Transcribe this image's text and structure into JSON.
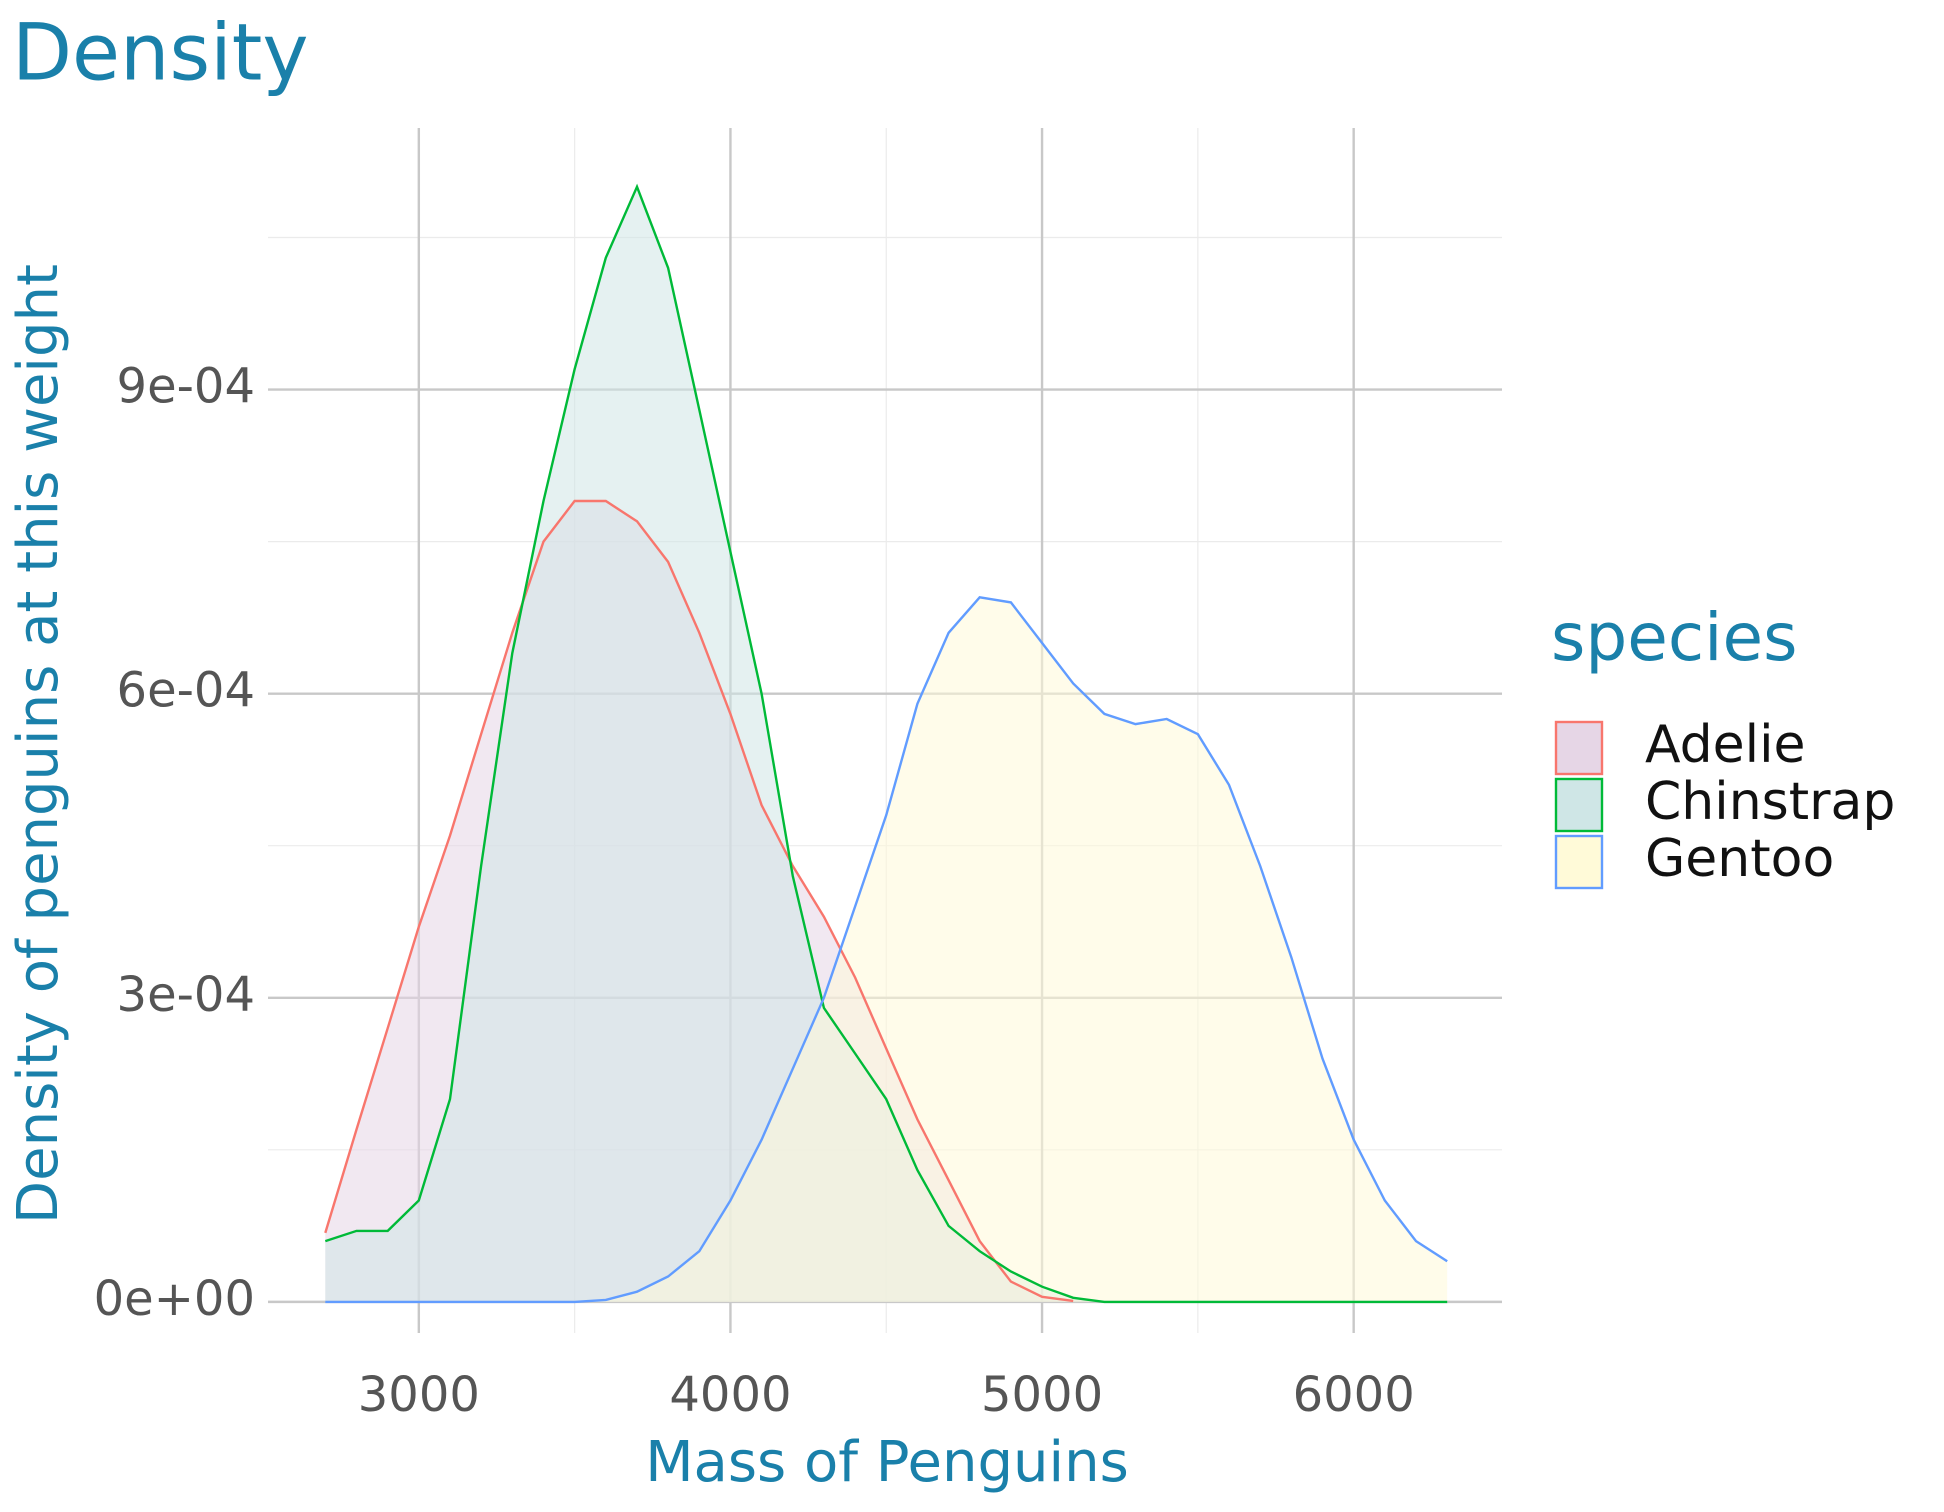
{
  "chart_data": {
    "type": "density",
    "title": "Density",
    "x_label": "Mass of Penguins",
    "y_label": "Density of penguins at this weight",
    "legend_title": "species",
    "legend_position": "right",
    "grid": true,
    "xlim": [
      2516,
      6476
    ],
    "ylim": [
      -3.07e-05,
      0.001158
    ],
    "xticks": [
      3000,
      4000,
      5000,
      6000
    ],
    "yticks": [
      {
        "value": 0,
        "label": "0e+00"
      },
      {
        "value": 0.0003,
        "label": "3e-04"
      },
      {
        "value": 0.0006,
        "label": "6e-04"
      },
      {
        "value": 0.0009,
        "label": "9e-04"
      }
    ],
    "x_minor_ticks": [
      3500,
      4500,
      5500
    ],
    "y_minor_ticks": [
      0.00015,
      0.00045,
      0.00075,
      0.00105
    ],
    "x": [
      2700,
      2800,
      2900,
      3000,
      3100,
      3200,
      3300,
      3400,
      3500,
      3600,
      3700,
      3800,
      3900,
      4000,
      4100,
      4200,
      4300,
      4400,
      4500,
      4600,
      4700,
      4800,
      4900,
      5000,
      5100,
      5200,
      5300,
      5400,
      5500,
      5600,
      5700,
      5800,
      5900,
      6000,
      6100,
      6200,
      6300
    ],
    "series": [
      {
        "name": "Adelie",
        "color": "#F8766D",
        "fill": "#e6d6e6",
        "values": [
          6.8e-05,
          0.00017,
          0.00027,
          0.00037,
          0.00046,
          0.00056,
          0.00066,
          0.00075,
          0.00079,
          0.00079,
          0.00077,
          0.00073,
          0.00066,
          0.00058,
          0.00049,
          0.00043,
          0.00038,
          0.00032,
          0.00025,
          0.00018,
          0.00012,
          6e-05,
          2e-05,
          5e-06,
          1e-06,
          null,
          null,
          null,
          null,
          null,
          null,
          null,
          null,
          null,
          null,
          null,
          null
        ]
      },
      {
        "name": "Chinstrap",
        "color": "#00BA38",
        "fill": "#cfe6e6",
        "values": [
          6e-05,
          7e-05,
          7e-05,
          0.0001,
          0.0002,
          0.00043,
          0.00064,
          0.00079,
          0.00092,
          0.00103,
          0.0011,
          0.00102,
          0.00088,
          0.00074,
          0.0006,
          0.00042,
          0.00029,
          0.000245,
          0.0002,
          0.00013,
          7.5e-05,
          5e-05,
          3e-05,
          1.5e-05,
          4e-06,
          0,
          0,
          0,
          0,
          0,
          0,
          0,
          0,
          0,
          0,
          0,
          0
        ]
      },
      {
        "name": "Gentoo",
        "color": "#619CFF",
        "fill": "#fffad8",
        "values": [
          0,
          0,
          0,
          0,
          0,
          0,
          0,
          0,
          0,
          2e-06,
          1e-05,
          2.5e-05,
          5e-05,
          0.0001,
          0.00016,
          0.00023,
          0.0003,
          0.00039,
          0.00048,
          0.00059,
          0.00066,
          0.000695,
          0.00069,
          0.00065,
          0.00061,
          0.00058,
          0.00057,
          0.000575,
          0.00056,
          0.00051,
          0.00043,
          0.00034,
          0.00024,
          0.00016,
          0.0001,
          6e-05,
          4e-05
        ]
      }
    ]
  }
}
